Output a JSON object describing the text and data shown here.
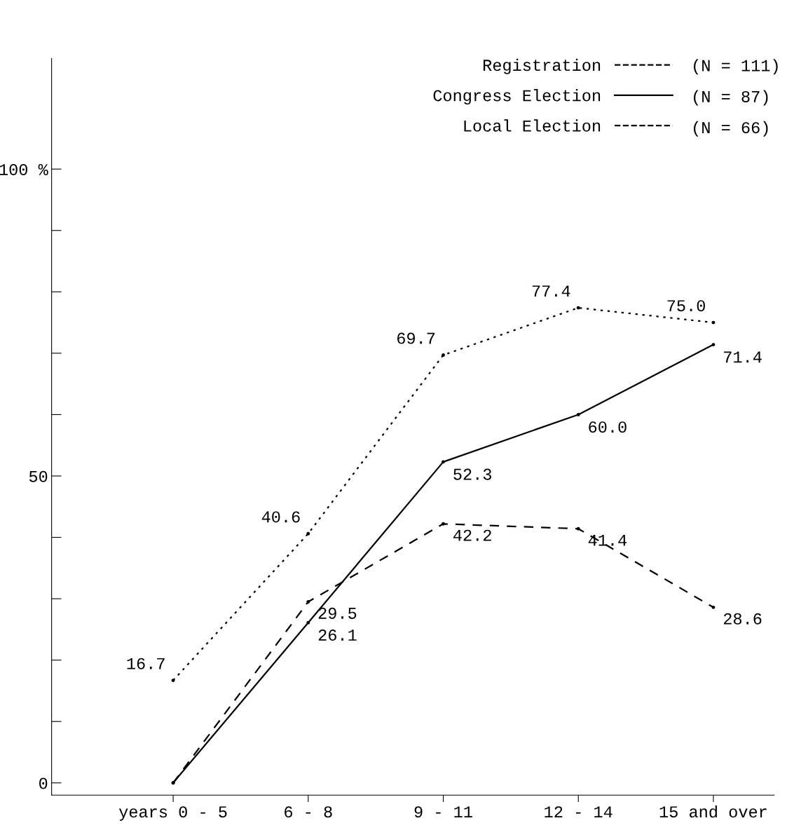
{
  "chart_data": {
    "type": "line",
    "categories": [
      "years 0 - 5",
      "6 - 8",
      "9 - 11",
      "12 - 14",
      "15 and over"
    ],
    "series": [
      {
        "name": "Registration",
        "color": "#000000",
        "line_style": "dotted",
        "values": [
          16.7,
          40.6,
          69.7,
          77.4,
          75.0
        ],
        "value_labels": [
          "16.7",
          "40.6",
          "69.7",
          "77.4",
          "75.0"
        ]
      },
      {
        "name": "Congress Election",
        "color": "#000000",
        "line_style": "solid",
        "values": [
          0,
          26.1,
          52.3,
          60.0,
          71.4
        ],
        "value_labels": [
          null,
          "26.1",
          "52.3",
          "60.0",
          "71.4"
        ]
      },
      {
        "name": "Local Election",
        "color": "#000000",
        "line_style": "dashed",
        "values": [
          0,
          29.5,
          42.2,
          41.4,
          28.6
        ],
        "value_labels": [
          null,
          "29.5",
          "42.2",
          "41.4",
          "28.6"
        ]
      }
    ],
    "annotations": [
      "(N = 111)",
      "(N = 87)",
      "(N = 66)"
    ],
    "ylim": [
      -2,
      118
    ],
    "yticks": [
      0,
      {
        "value": 10,
        "label": null
      },
      {
        "value": 20,
        "label": null
      },
      {
        "value": 30,
        "label": null
      },
      {
        "value": 40,
        "label": null
      },
      50,
      {
        "value": 60,
        "label": null
      },
      {
        "value": 70,
        "label": null
      },
      {
        "value": 80,
        "label": null
      },
      {
        "value": 90,
        "label": null
      },
      {
        "value": 100,
        "label": "100 %"
      }
    ],
    "marker": "circle",
    "legend": "top right",
    "grid": false
  }
}
